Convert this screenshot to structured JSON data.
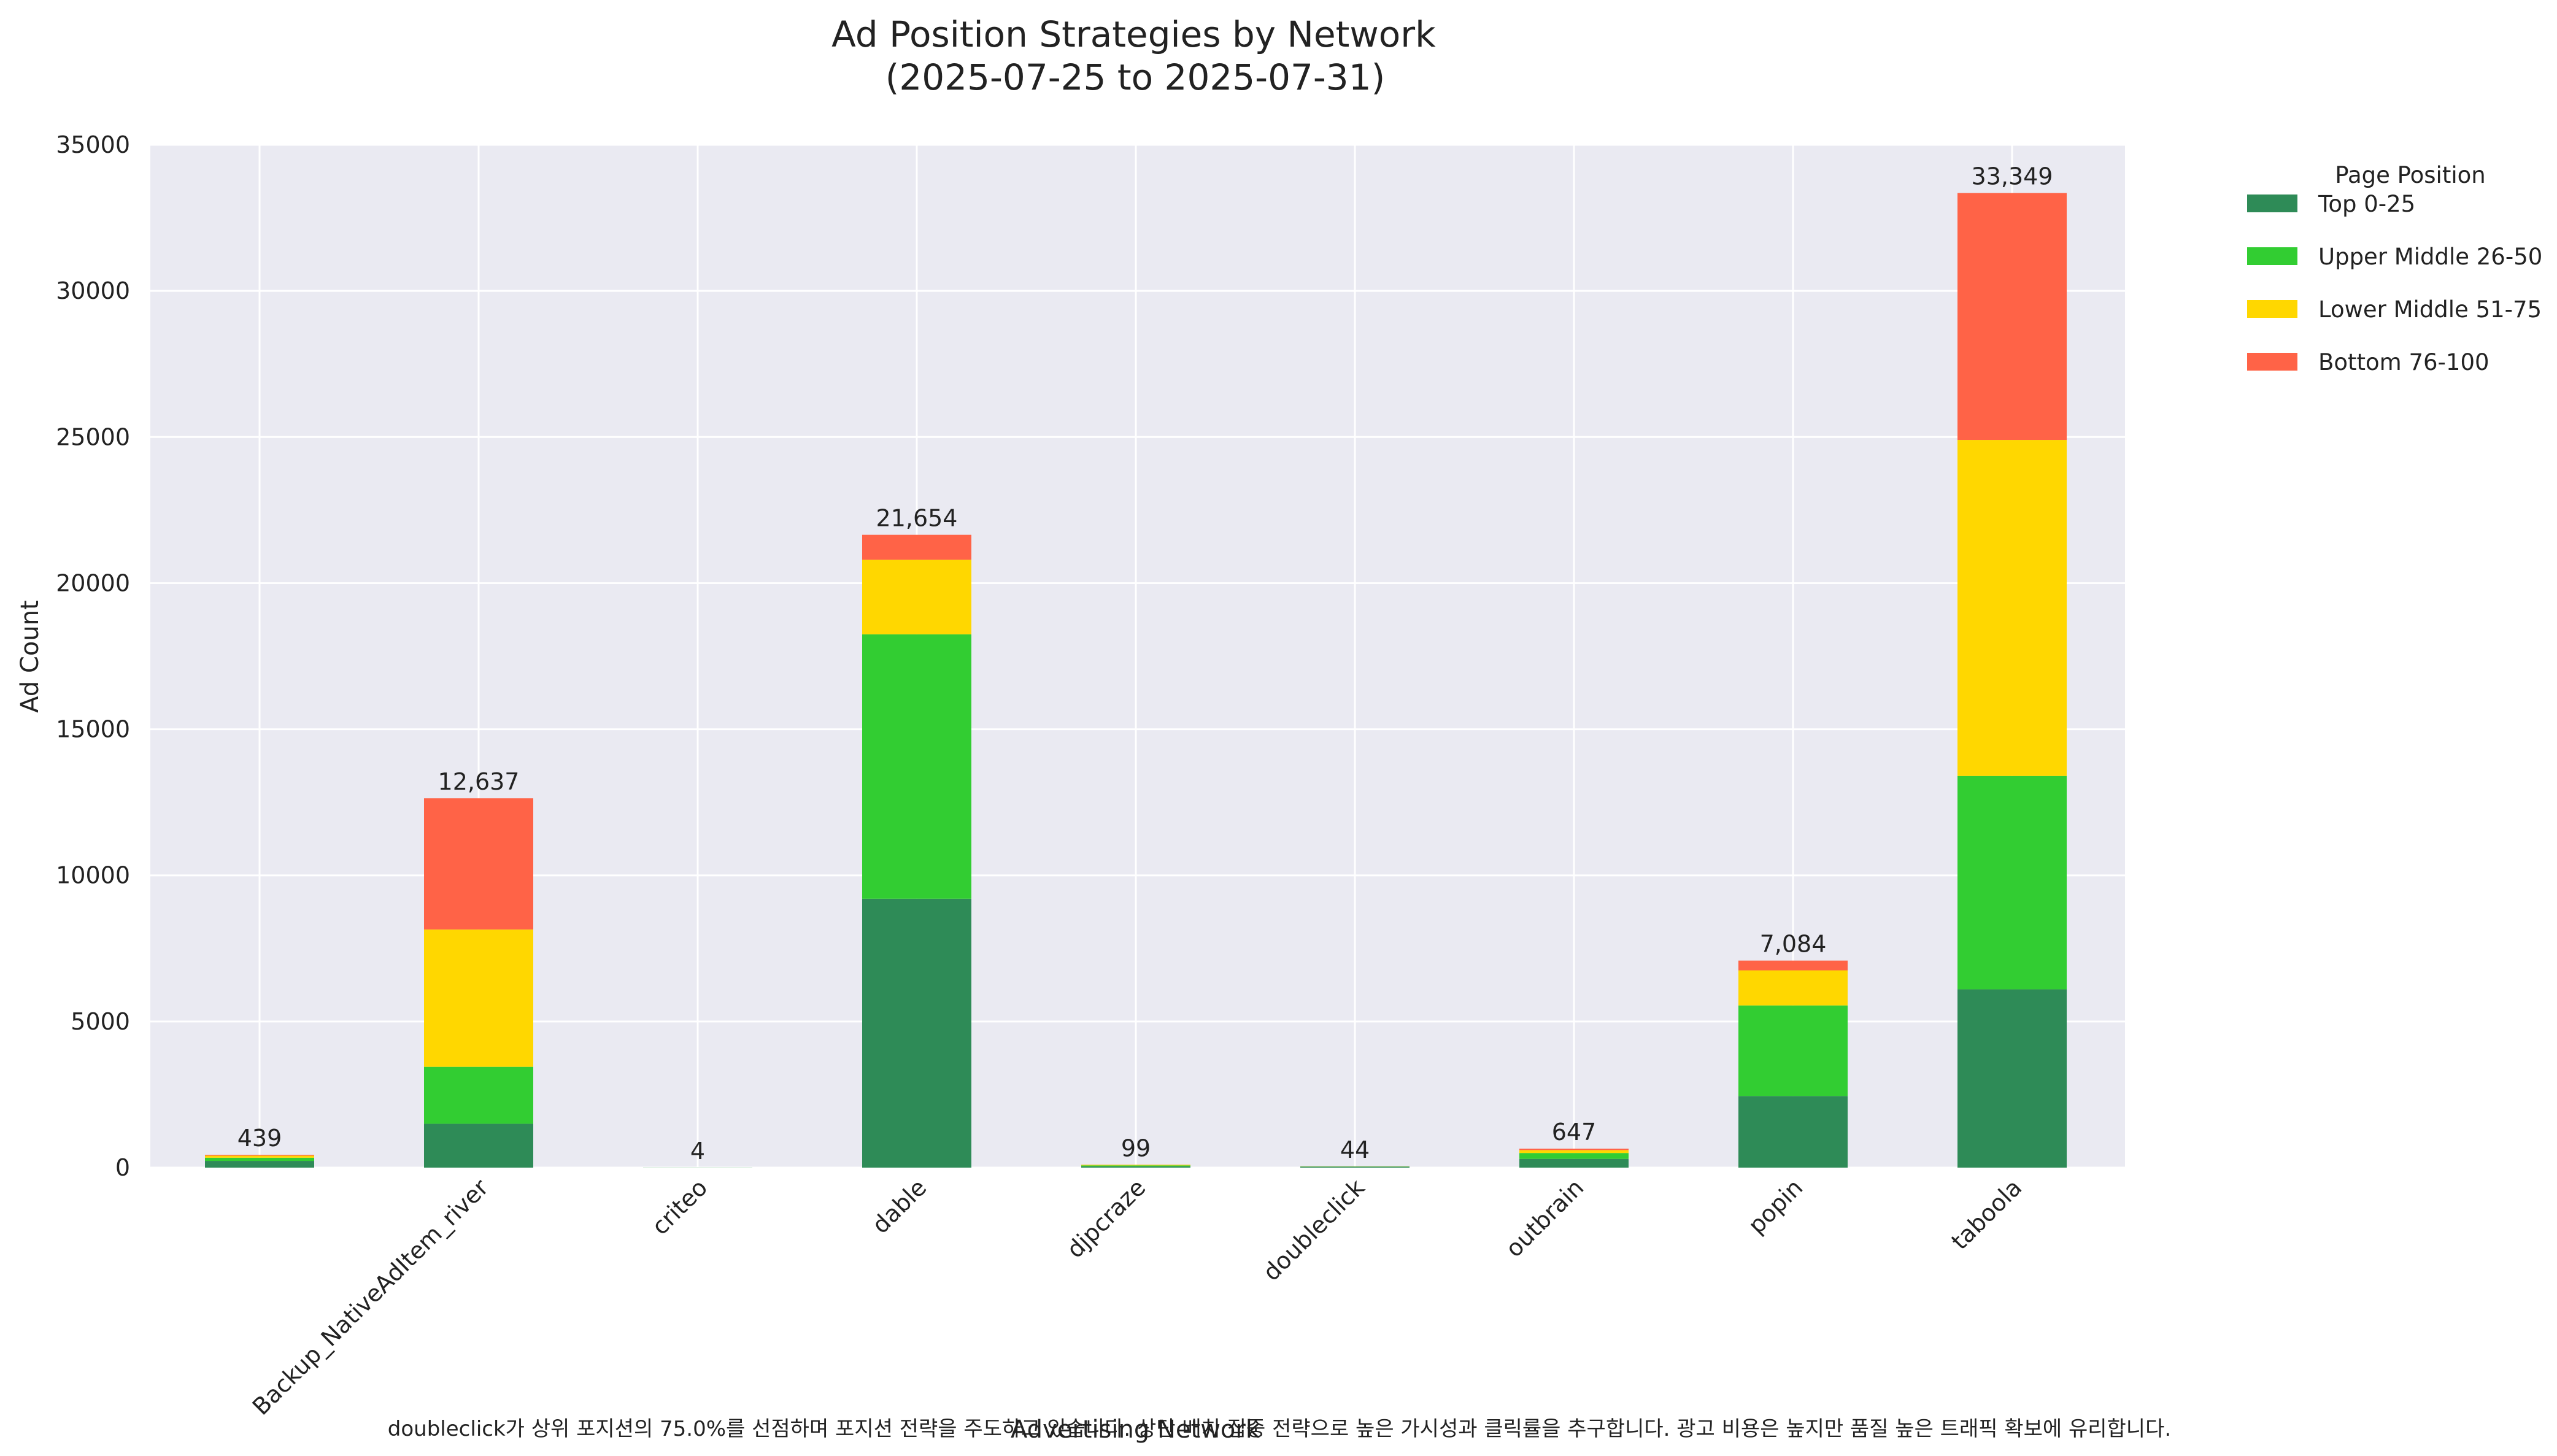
{
  "chart_data": {
    "type": "bar",
    "stacked": true,
    "title_lines": [
      "Ad Position Strategies by Network",
      "(2025-07-25 to 2025-07-31)"
    ],
    "xlabel": "Advertising Network",
    "ylabel": "Ad Count",
    "ylim": [
      0,
      35000
    ],
    "yticks": [
      0,
      5000,
      10000,
      15000,
      20000,
      25000,
      30000,
      35000
    ],
    "grid": true,
    "legend": {
      "title": "Page Position",
      "placement": "outside-top-right"
    },
    "categories": [
      "",
      "Backup_NativeAdItem_river",
      "criteo",
      "dable",
      "djpcraze",
      "doubleclick",
      "outbrain",
      "popin",
      "taboola"
    ],
    "series": [
      {
        "name": "Top 0-25",
        "color": "#2e8b57",
        "values": [
          230,
          1500,
          3,
          9200,
          40,
          33,
          300,
          2450,
          6100
        ]
      },
      {
        "name": "Upper Middle 26-50",
        "color": "#32cd32",
        "values": [
          110,
          1950,
          1,
          9050,
          35,
          6,
          200,
          3100,
          7300
        ]
      },
      {
        "name": "Lower Middle 51-75",
        "color": "#ffd700",
        "values": [
          70,
          4700,
          0,
          2550,
          20,
          3,
          100,
          1200,
          11500
        ]
      },
      {
        "name": "Bottom 76-100",
        "color": "#ff6347",
        "values": [
          29,
          4487,
          0,
          854,
          4,
          2,
          47,
          334,
          8449
        ]
      }
    ],
    "totals": [
      "439",
      "12,637",
      "4",
      "21,654",
      "99",
      "44",
      "647",
      "7,084",
      "33,349"
    ],
    "annotation": "doubleclick가 상위 포지션의 75.0%를 선점하며 포지션 전략을 주도하고 있습니다. 상단 배치 집중 전략으로 높은 가시성과 클릭률을 추구합니다. 광고 비용은 높지만 품질 높은 트래픽 확보에 유리합니다."
  }
}
